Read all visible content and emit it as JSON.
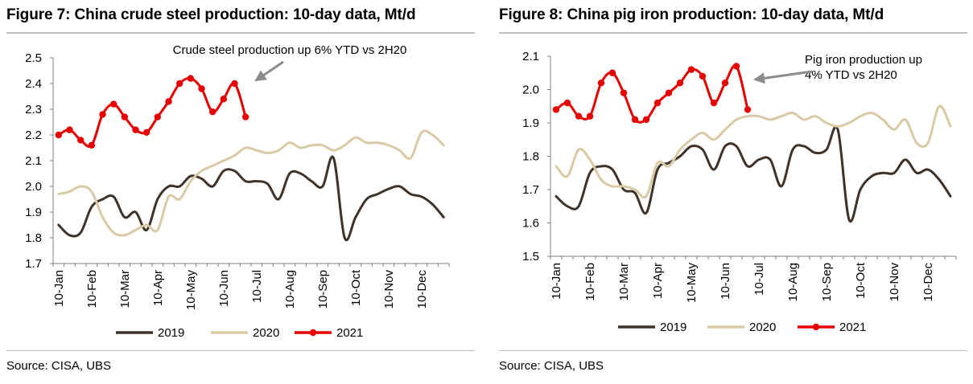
{
  "chart_data": [
    {
      "type": "line",
      "figure_label": "Figure 7:",
      "title": "China crude steel production: 10-day data, Mt/d",
      "xlabel": "",
      "ylabel": "",
      "ylim": [
        1.7,
        2.5
      ],
      "y_ticks": [
        "1.7",
        "1.8",
        "1.9",
        "2.0",
        "2.1",
        "2.2",
        "2.3",
        "2.4",
        "2.5"
      ],
      "grid": false,
      "legend_position": "bottom",
      "x_tick_labels": [
        "10-Jan",
        "10-Feb",
        "10-Mar",
        "10-Apr",
        "10-May",
        "10-Jun",
        "10-Jul",
        "10-Aug",
        "10-Sep",
        "10-Oct",
        "10-Nov",
        "10-Dec"
      ],
      "x_count": 36,
      "annotation": [
        "Crude  steel production  up 6% YTD vs 2H20"
      ],
      "series": [
        {
          "name": "2019",
          "color": "#3f3228",
          "markers": false,
          "values": [
            1.85,
            1.81,
            1.82,
            1.92,
            1.95,
            1.96,
            1.88,
            1.9,
            1.83,
            1.95,
            2.0,
            2.0,
            2.04,
            2.03,
            2.0,
            2.06,
            2.06,
            2.02,
            2.02,
            2.01,
            1.95,
            2.05,
            2.05,
            2.02,
            2.0,
            2.11,
            1.8,
            1.88,
            1.95,
            1.97,
            1.99,
            2.0,
            1.97,
            1.96,
            1.93,
            1.88
          ]
        },
        {
          "name": "2020",
          "color": "#d9caa6",
          "markers": false,
          "values": [
            1.97,
            1.98,
            2.0,
            1.98,
            1.88,
            1.82,
            1.81,
            1.83,
            1.85,
            1.83,
            1.96,
            1.95,
            2.02,
            2.06,
            2.08,
            2.1,
            2.12,
            2.15,
            2.14,
            2.13,
            2.14,
            2.17,
            2.15,
            2.16,
            2.16,
            2.14,
            2.16,
            2.19,
            2.17,
            2.17,
            2.16,
            2.14,
            2.11,
            2.21,
            2.2,
            2.16
          ]
        },
        {
          "name": "2021",
          "color": "#e60000",
          "markers": true,
          "values": [
            2.2,
            2.22,
            2.18,
            2.16,
            2.28,
            2.32,
            2.27,
            2.22,
            2.21,
            2.27,
            2.33,
            2.4,
            2.42,
            2.38,
            2.29,
            2.34,
            2.4,
            2.27
          ]
        }
      ]
    },
    {
      "type": "line",
      "figure_label": "Figure 8:",
      "title": "China pig iron production: 10-day data, Mt/d",
      "xlabel": "",
      "ylabel": "",
      "ylim": [
        1.5,
        2.1
      ],
      "y_ticks": [
        "1.5",
        "1.6",
        "1.7",
        "1.8",
        "1.9",
        "2.0",
        "2.1"
      ],
      "grid": false,
      "legend_position": "bottom",
      "x_tick_labels": [
        "10-Jan",
        "10-Feb",
        "10-Mar",
        "10-Apr",
        "10-May",
        "10-Jun",
        "10-Jul",
        "10-Aug",
        "10-Sep",
        "10-Oct",
        "10-Nov",
        "10-Dec"
      ],
      "x_count": 36,
      "annotation": [
        "Pig iron production  up",
        "4% YTD vs 2H20"
      ],
      "series": [
        {
          "name": "2019",
          "color": "#3f3228",
          "markers": false,
          "values": [
            1.68,
            1.65,
            1.65,
            1.75,
            1.77,
            1.76,
            1.7,
            1.69,
            1.63,
            1.76,
            1.78,
            1.8,
            1.83,
            1.82,
            1.76,
            1.83,
            1.83,
            1.77,
            1.79,
            1.79,
            1.71,
            1.82,
            1.83,
            1.81,
            1.82,
            1.88,
            1.61,
            1.7,
            1.74,
            1.75,
            1.75,
            1.79,
            1.75,
            1.76,
            1.73,
            1.68
          ]
        },
        {
          "name": "2020",
          "color": "#d9caa6",
          "markers": false,
          "values": [
            1.77,
            1.74,
            1.82,
            1.79,
            1.73,
            1.71,
            1.71,
            1.7,
            1.68,
            1.78,
            1.77,
            1.82,
            1.85,
            1.87,
            1.85,
            1.88,
            1.91,
            1.92,
            1.92,
            1.91,
            1.92,
            1.93,
            1.91,
            1.92,
            1.9,
            1.89,
            1.9,
            1.92,
            1.93,
            1.91,
            1.88,
            1.91,
            1.84,
            1.84,
            1.95,
            1.89
          ]
        },
        {
          "name": "2021",
          "color": "#e60000",
          "markers": true,
          "values": [
            1.94,
            1.96,
            1.92,
            1.92,
            2.02,
            2.05,
            1.99,
            1.91,
            1.91,
            1.96,
            1.99,
            2.02,
            2.06,
            2.04,
            1.96,
            2.02,
            2.07,
            1.94
          ]
        }
      ]
    }
  ],
  "source_text": "Source:  CISA, UBS"
}
